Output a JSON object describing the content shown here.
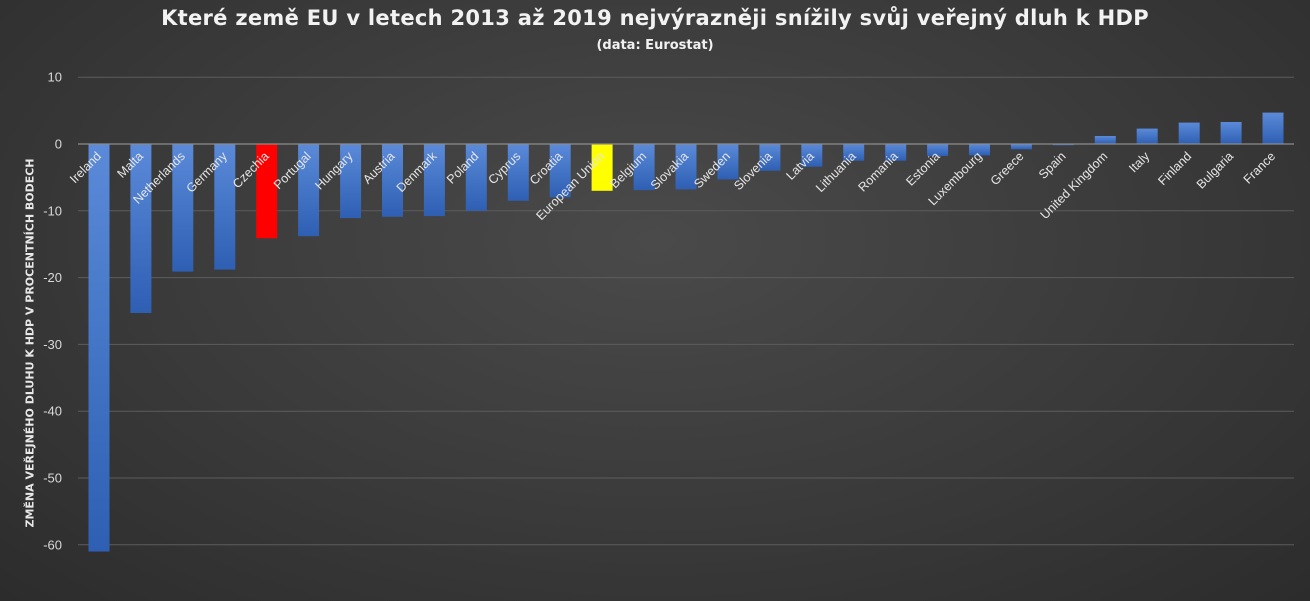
{
  "chart_data": {
    "type": "bar",
    "title": "Které země EU v letech 2013 až 2019 nejvýrazněji snížily svůj veřejný dluh k HDP",
    "subtitle": "(data: Eurostat)",
    "xlabel": "",
    "ylabel": "ZMĚNA VEŘEJNÉHO DLUHU K HDP V PROCENTNÍCH BODECH",
    "ylim": [
      -65,
      10
    ],
    "yticks": [
      10,
      0,
      -10,
      -20,
      -30,
      -40,
      -50,
      -60
    ],
    "grid": true,
    "legend": "none",
    "categories": [
      "Ireland",
      "Malta",
      "Netherlands",
      "Germany",
      "Czechia",
      "Portugal",
      "Hungary",
      "Austria",
      "Denmark",
      "Poland",
      "Cyprus",
      "Croatia",
      "European Union",
      "Belgium",
      "Slovakia",
      "Sweden",
      "Slovenia",
      "Latvia",
      "Lithuania",
      "Romania",
      "Estonia",
      "Luxembourg",
      "Greece",
      "Spain",
      "United Kingdom",
      "Italy",
      "Finland",
      "Bulgaria",
      "France"
    ],
    "values": [
      -61.0,
      -25.3,
      -19.1,
      -18.8,
      -14.1,
      -13.8,
      -11.1,
      -10.9,
      -10.8,
      -10.0,
      -8.5,
      -8.0,
      -7.0,
      -6.9,
      -6.8,
      -5.3,
      -4.0,
      -3.4,
      -2.5,
      -2.5,
      -1.8,
      -1.7,
      -0.8,
      -0.2,
      1.2,
      2.3,
      3.2,
      3.3,
      4.7
    ],
    "colors": {
      "default": "#4472c4",
      "highlight": {
        "Czechia": "#ff0000",
        "European Union": "#ffff00"
      },
      "grid": "#5c5c5c",
      "axis": "#8c8c8c"
    }
  }
}
